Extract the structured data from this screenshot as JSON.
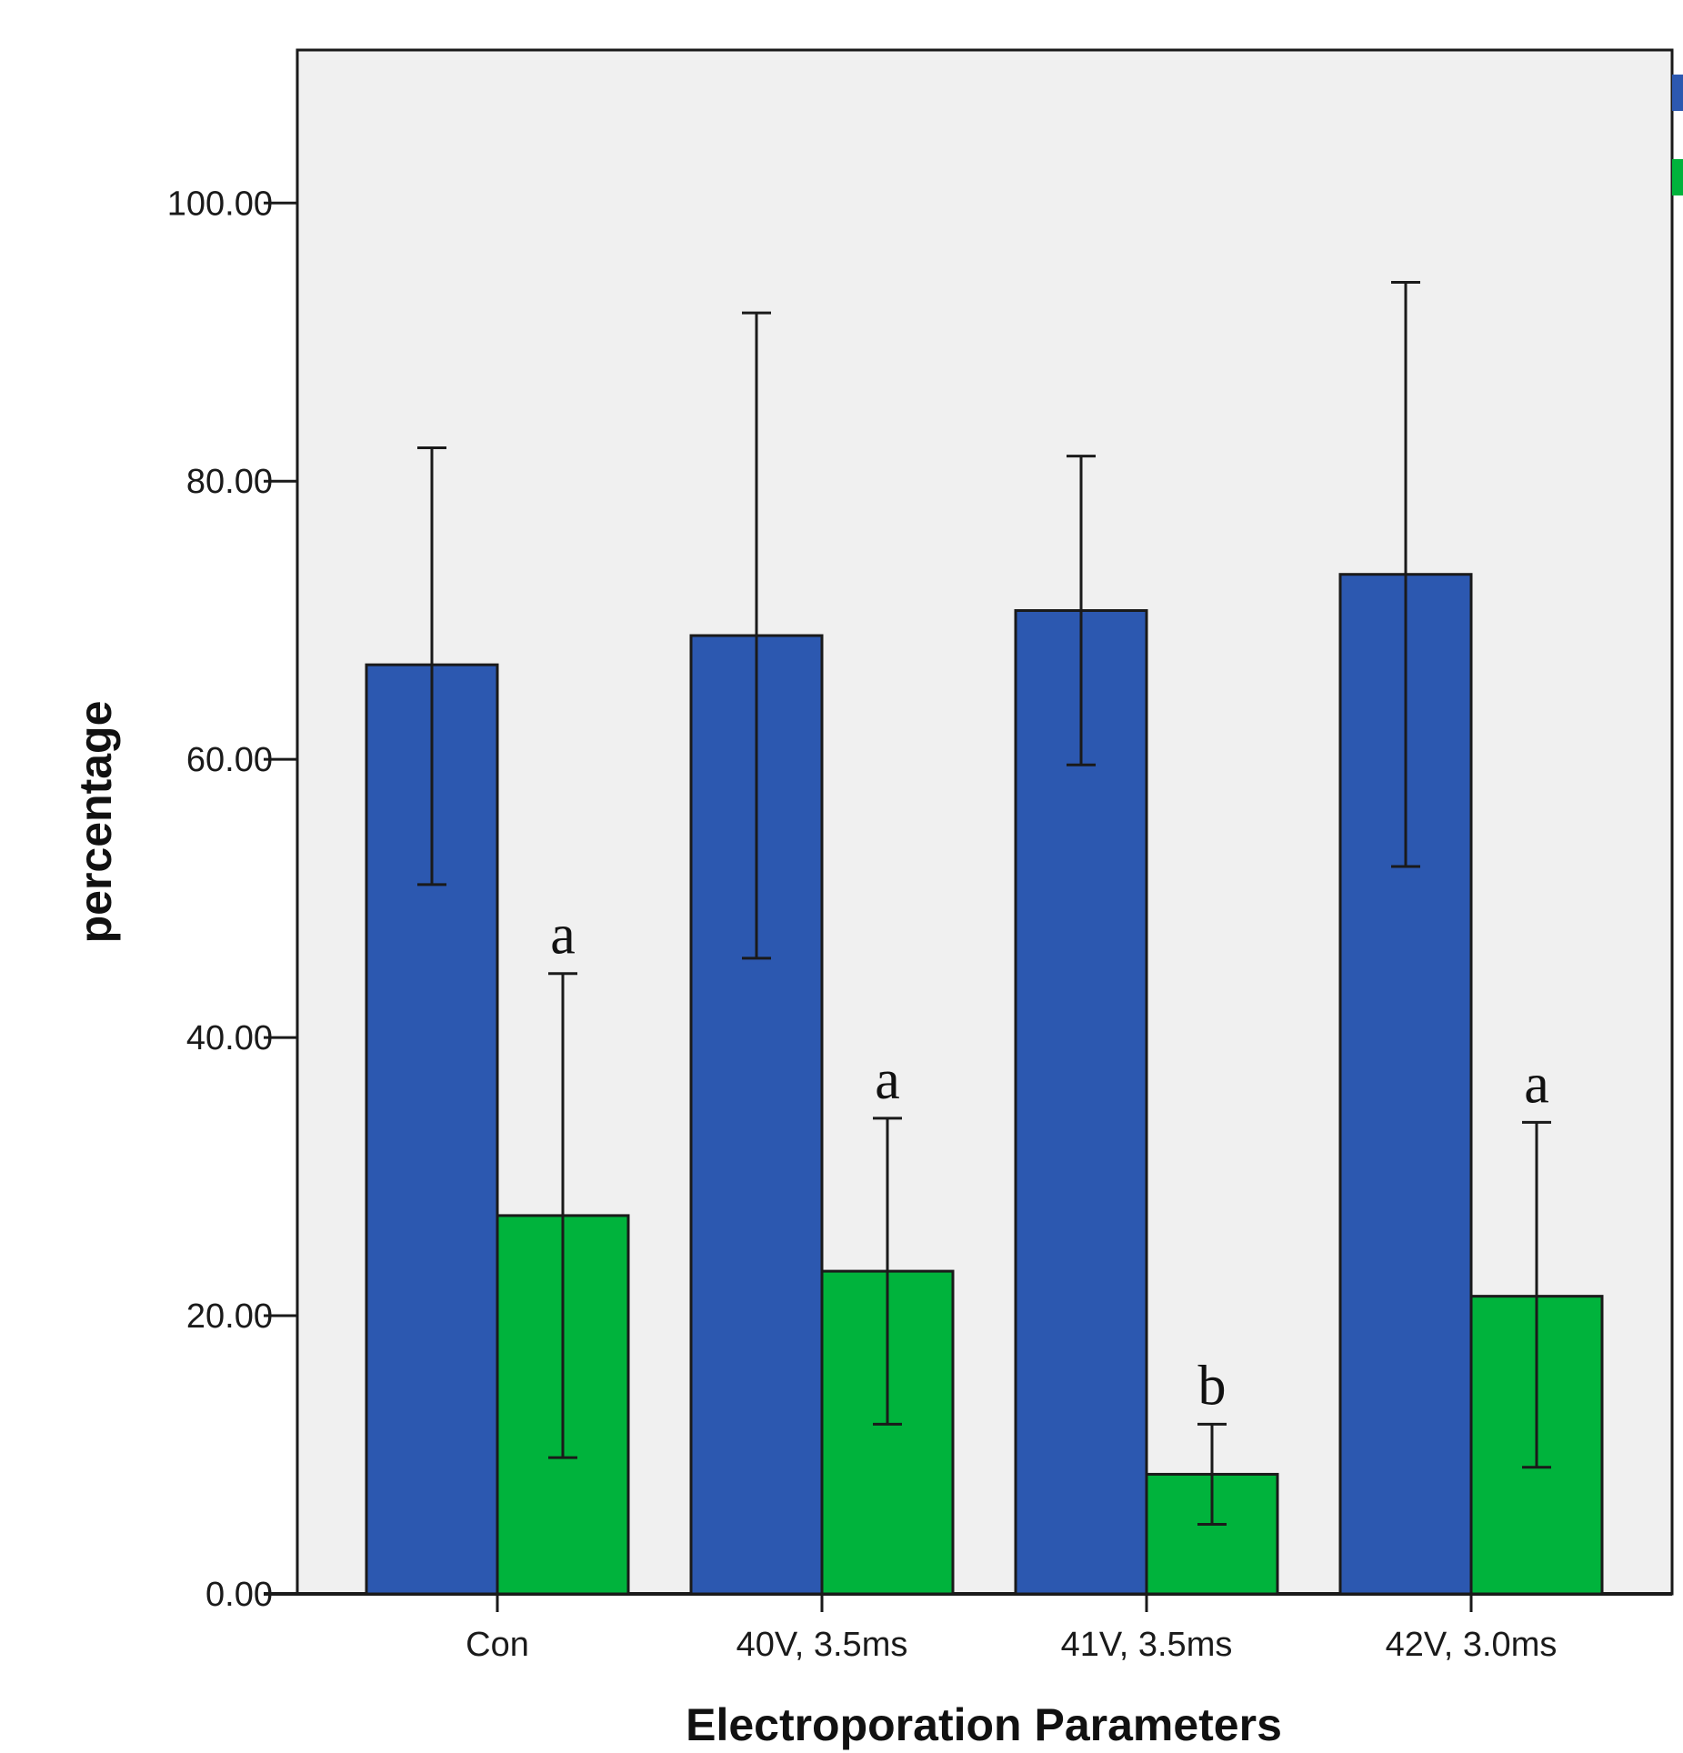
{
  "chart_data": {
    "type": "bar",
    "xlabel": "Electroporation Parameters",
    "ylabel": "percentage",
    "categories": [
      "Con",
      "40V, 3.5ms",
      "41V, 3.5ms",
      "42V, 3.0ms"
    ],
    "ylim": [
      0,
      111
    ],
    "yticks": [
      0,
      20,
      40,
      60,
      80,
      100
    ],
    "ytick_labels": [
      "0.00",
      "20.00",
      "40.00",
      "60.00",
      "80.00",
      "100.00"
    ],
    "grid": false,
    "legend_placement": "top-right (cropped)",
    "colors": {
      "series1": "#2c58b0",
      "series2": "#00b33c",
      "plot_background": "#f0f0f0"
    },
    "series": [
      {
        "values": [
          66.8,
          68.9,
          70.7,
          73.3
        ],
        "error_low": [
          51.0,
          45.7,
          59.6,
          52.3
        ],
        "error_high": [
          82.4,
          92.1,
          81.8,
          94.3
        ],
        "labels": [
          "",
          "",
          "",
          ""
        ]
      },
      {
        "values": [
          27.2,
          23.2,
          8.6,
          21.4
        ],
        "error_low": [
          9.8,
          12.2,
          5.0,
          9.1
        ],
        "error_high": [
          44.6,
          34.2,
          12.2,
          33.9
        ],
        "labels": [
          "a",
          "a",
          "b",
          "a"
        ]
      }
    ]
  }
}
